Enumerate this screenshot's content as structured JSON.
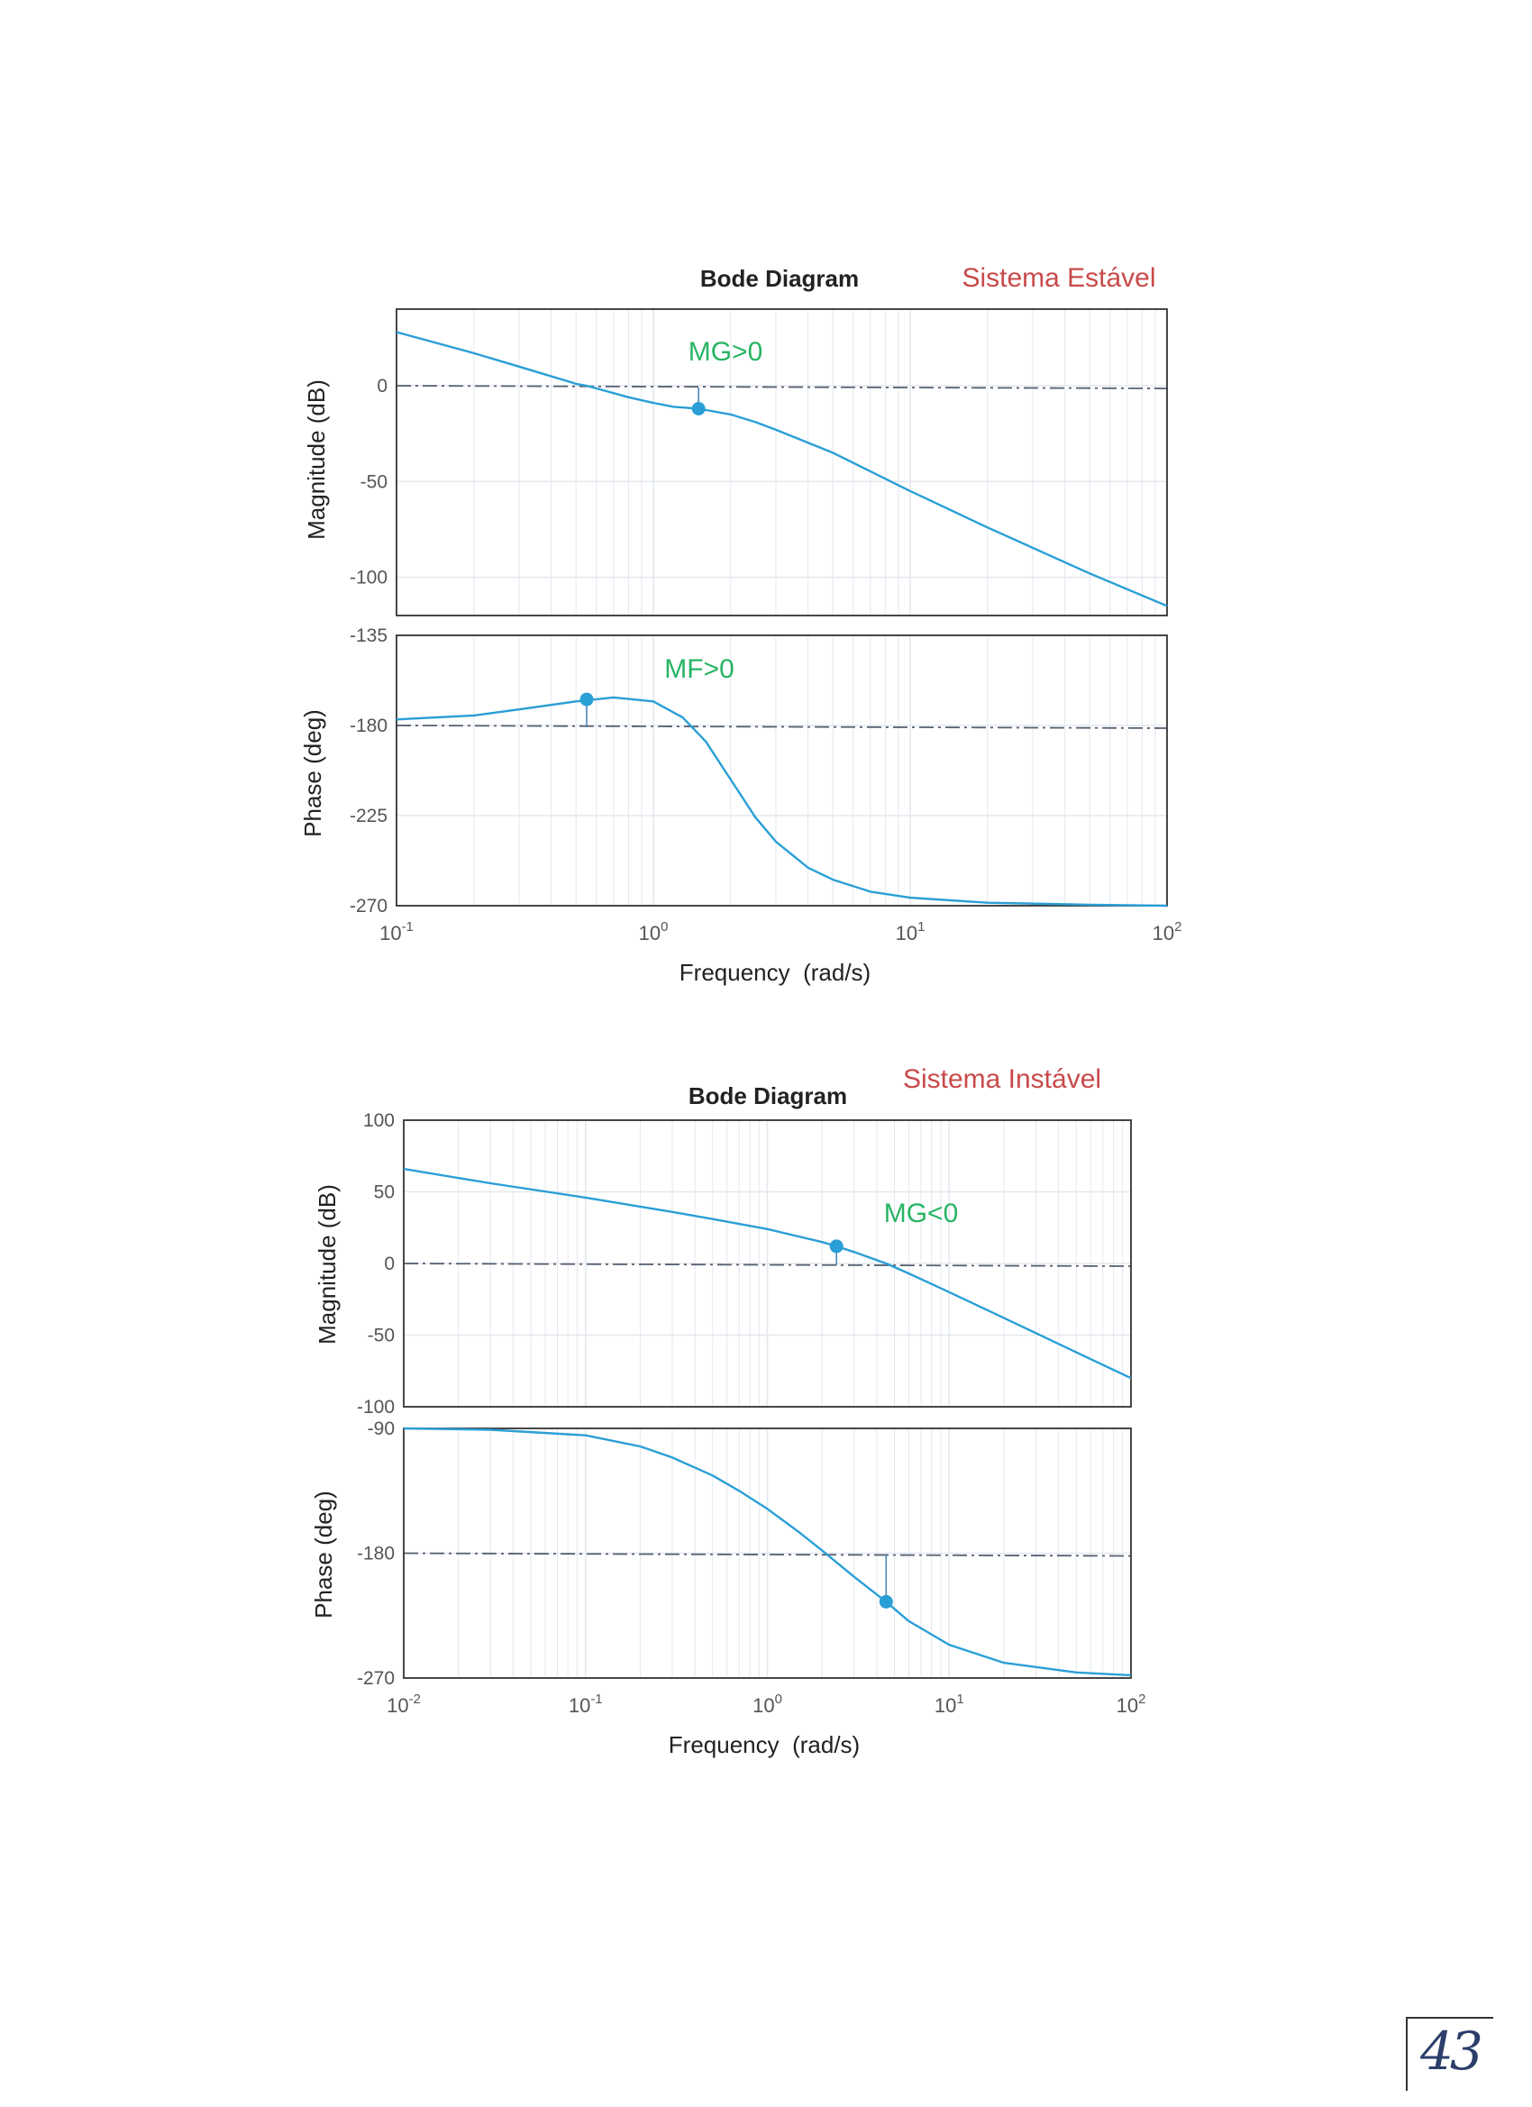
{
  "page": {
    "number": "43"
  },
  "charts": [
    {
      "title": "Bode Diagram",
      "annotation": "Sistema Estável",
      "xlabel": "Frequency  (rad/s)",
      "xticks": [
        {
          "exp": "-1"
        },
        {
          "exp": "0"
        },
        {
          "exp": "1"
        },
        {
          "exp": "2"
        }
      ],
      "magnitude": {
        "ylabel": "Magnitude (dB)",
        "yticks": [
          "0",
          "-50",
          "-100"
        ],
        "margin_label": "MG>0"
      },
      "phase": {
        "ylabel": "Phase (deg)",
        "yticks": [
          "-135",
          "-180",
          "-225",
          "-270"
        ],
        "margin_label": "MF>0"
      }
    },
    {
      "title": "Bode Diagram",
      "annotation": "Sistema Instável",
      "xlabel": "Frequency  (rad/s)",
      "xticks": [
        {
          "exp": "-2"
        },
        {
          "exp": "-1"
        },
        {
          "exp": "0"
        },
        {
          "exp": "1"
        },
        {
          "exp": "2"
        }
      ],
      "magnitude": {
        "ylabel": "Magnitude (dB)",
        "yticks": [
          "100",
          "50",
          "0",
          "-50",
          "-100"
        ],
        "margin_label": "MG<0"
      },
      "phase": {
        "ylabel": "Phase (deg)",
        "yticks": [
          "-90",
          "-180",
          "-270"
        ],
        "margin_label": ""
      }
    }
  ],
  "chart_data": [
    {
      "type": "line",
      "title": "Bode Diagram",
      "subplot": "magnitude",
      "x_scale": "log",
      "xlim": [
        0.1,
        100
      ],
      "ylim": [
        -120,
        40
      ],
      "grid": true,
      "reference_line": 0,
      "x": [
        0.1,
        0.2,
        0.3,
        0.5,
        0.55,
        0.8,
        1.0,
        1.2,
        1.5,
        2.0,
        2.5,
        3.0,
        5.0,
        10,
        20,
        50,
        100
      ],
      "y": [
        28,
        17,
        10,
        1,
        0,
        -6,
        -9,
        -11,
        -12,
        -15,
        -19,
        -23,
        -35,
        -55,
        -74,
        -98,
        -115
      ],
      "markers": [
        {
          "x": 1.5,
          "y": -12,
          "label": "MG>0"
        }
      ]
    },
    {
      "type": "line",
      "title": "Bode Diagram",
      "subplot": "phase",
      "x_scale": "log",
      "xlim": [
        0.1,
        100
      ],
      "ylim": [
        -270,
        -135
      ],
      "grid": true,
      "reference_line": -180,
      "x": [
        0.1,
        0.2,
        0.3,
        0.5,
        0.7,
        1.0,
        1.3,
        1.6,
        2.0,
        2.5,
        3.0,
        4.0,
        5.0,
        7.0,
        10,
        20,
        50,
        100
      ],
      "y": [
        -177,
        -175,
        -172,
        -168,
        -166,
        -168,
        -176,
        -188,
        -207,
        -226,
        -238,
        -251,
        -257,
        -263,
        -266,
        -268.5,
        -269.5,
        -270
      ],
      "markers": [
        {
          "x": 0.55,
          "y": -167,
          "label": "MF>0"
        }
      ]
    },
    {
      "type": "line",
      "title": "Bode Diagram",
      "subplot": "magnitude",
      "x_scale": "log",
      "xlim": [
        0.01,
        100
      ],
      "ylim": [
        -100,
        100
      ],
      "grid": true,
      "reference_line": 0,
      "x": [
        0.01,
        0.03,
        0.1,
        0.3,
        0.5,
        1.0,
        2.0,
        2.4,
        3.0,
        4.5,
        6.0,
        10,
        20,
        50,
        100
      ],
      "y": [
        66,
        56,
        46,
        36,
        31,
        24,
        15,
        12,
        8,
        0,
        -7,
        -20,
        -38,
        -62,
        -80
      ],
      "markers": [
        {
          "x": 2.4,
          "y": 12,
          "label": "MG<0"
        }
      ]
    },
    {
      "type": "line",
      "title": "Bode Diagram",
      "subplot": "phase",
      "x_scale": "log",
      "xlim": [
        0.01,
        100
      ],
      "ylim": [
        -270,
        -90
      ],
      "grid": true,
      "reference_line": -180,
      "x": [
        0.01,
        0.03,
        0.1,
        0.2,
        0.3,
        0.5,
        0.7,
        1.0,
        1.5,
        2.0,
        3.0,
        4.5,
        6.0,
        10,
        20,
        50,
        100
      ],
      "y": [
        -90,
        -91,
        -95,
        -103,
        -111,
        -124,
        -135,
        -148,
        -165,
        -178,
        -197,
        -215,
        -229,
        -246,
        -259,
        -266,
        -268
      ],
      "markers": [
        {
          "x": 4.5,
          "y": -215
        }
      ]
    }
  ]
}
